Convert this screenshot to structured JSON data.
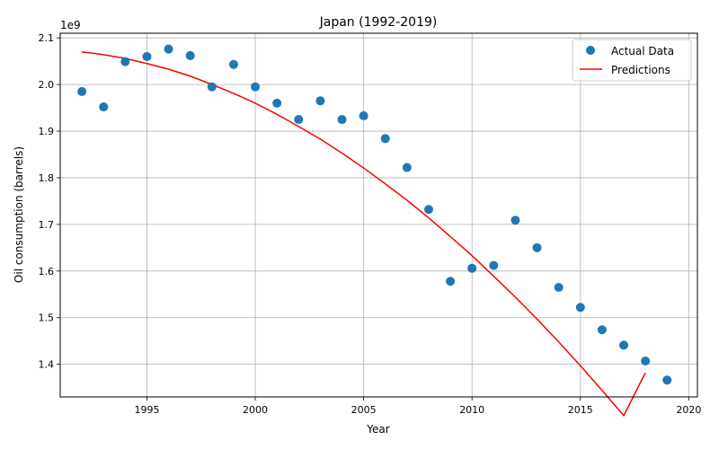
{
  "chart_data": {
    "type": "scatter",
    "title": "Japan (1992-2019)",
    "xlabel": "Year",
    "ylabel": "Oil consumption (barrels)",
    "y_offset_label": "1e9",
    "xlim": [
      1991,
      2020.4
    ],
    "ylim": [
      1330000000,
      2110000000
    ],
    "xticks": [
      1995,
      2000,
      2005,
      2010,
      2015,
      2020
    ],
    "xtick_labels": [
      "1995",
      "2000",
      "2005",
      "2010",
      "2015",
      "2020"
    ],
    "yticks": [
      1400000000,
      1500000000,
      1600000000,
      1700000000,
      1800000000,
      1900000000,
      2000000000,
      2100000000
    ],
    "ytick_labels": [
      "1.4",
      "1.5",
      "1.6",
      "1.7",
      "1.8",
      "1.9",
      "2.0",
      "2.1"
    ],
    "grid": true,
    "legend_position": "top-right",
    "series": [
      {
        "name": "Actual Data",
        "kind": "scatter",
        "color": "#1f77b4",
        "x": [
          1992,
          1993,
          1994,
          1995,
          1996,
          1997,
          1998,
          1999,
          2000,
          2001,
          2002,
          2003,
          2004,
          2005,
          2006,
          2007,
          2008,
          2009,
          2010,
          2011,
          2012,
          2013,
          2014,
          2015,
          2016,
          2017,
          2018,
          2019
        ],
        "y": [
          1985000000,
          1952000000,
          2049000000,
          2060000000,
          2076000000,
          2062000000,
          1995000000,
          2043000000,
          1995000000,
          1960000000,
          1925000000,
          1965000000,
          1925000000,
          1933000000,
          1884000000,
          1822000000,
          1732000000,
          1578000000,
          1606000000,
          1612000000,
          1709000000,
          1650000000,
          1565000000,
          1522000000,
          1474000000,
          1441000000,
          1407000000,
          1366000000
        ]
      },
      {
        "name": "Predictions",
        "kind": "line",
        "color": "#ff0000",
        "x": [
          1992,
          1993,
          1994,
          1995,
          1996,
          1997,
          1998,
          1999,
          2000,
          2001,
          2002,
          2003,
          2004,
          2005,
          2006,
          2007,
          2008,
          2009,
          2010,
          2011,
          2012,
          2013,
          2014,
          2015,
          2016,
          2017,
          2018
        ],
        "y": [
          2070000000,
          2064000000,
          2056000000,
          2045000000,
          2033000000,
          2018000000,
          2000000000,
          1981000000,
          1960000000,
          1936000000,
          1910000000,
          1883000000,
          1853000000,
          1821000000,
          1787000000,
          1752000000,
          1714000000,
          1674000000,
          1633000000,
          1589000000,
          1544000000,
          1497000000,
          1448000000,
          1397000000,
          1344000000,
          1290000000,
          1382000000
        ]
      }
    ]
  }
}
